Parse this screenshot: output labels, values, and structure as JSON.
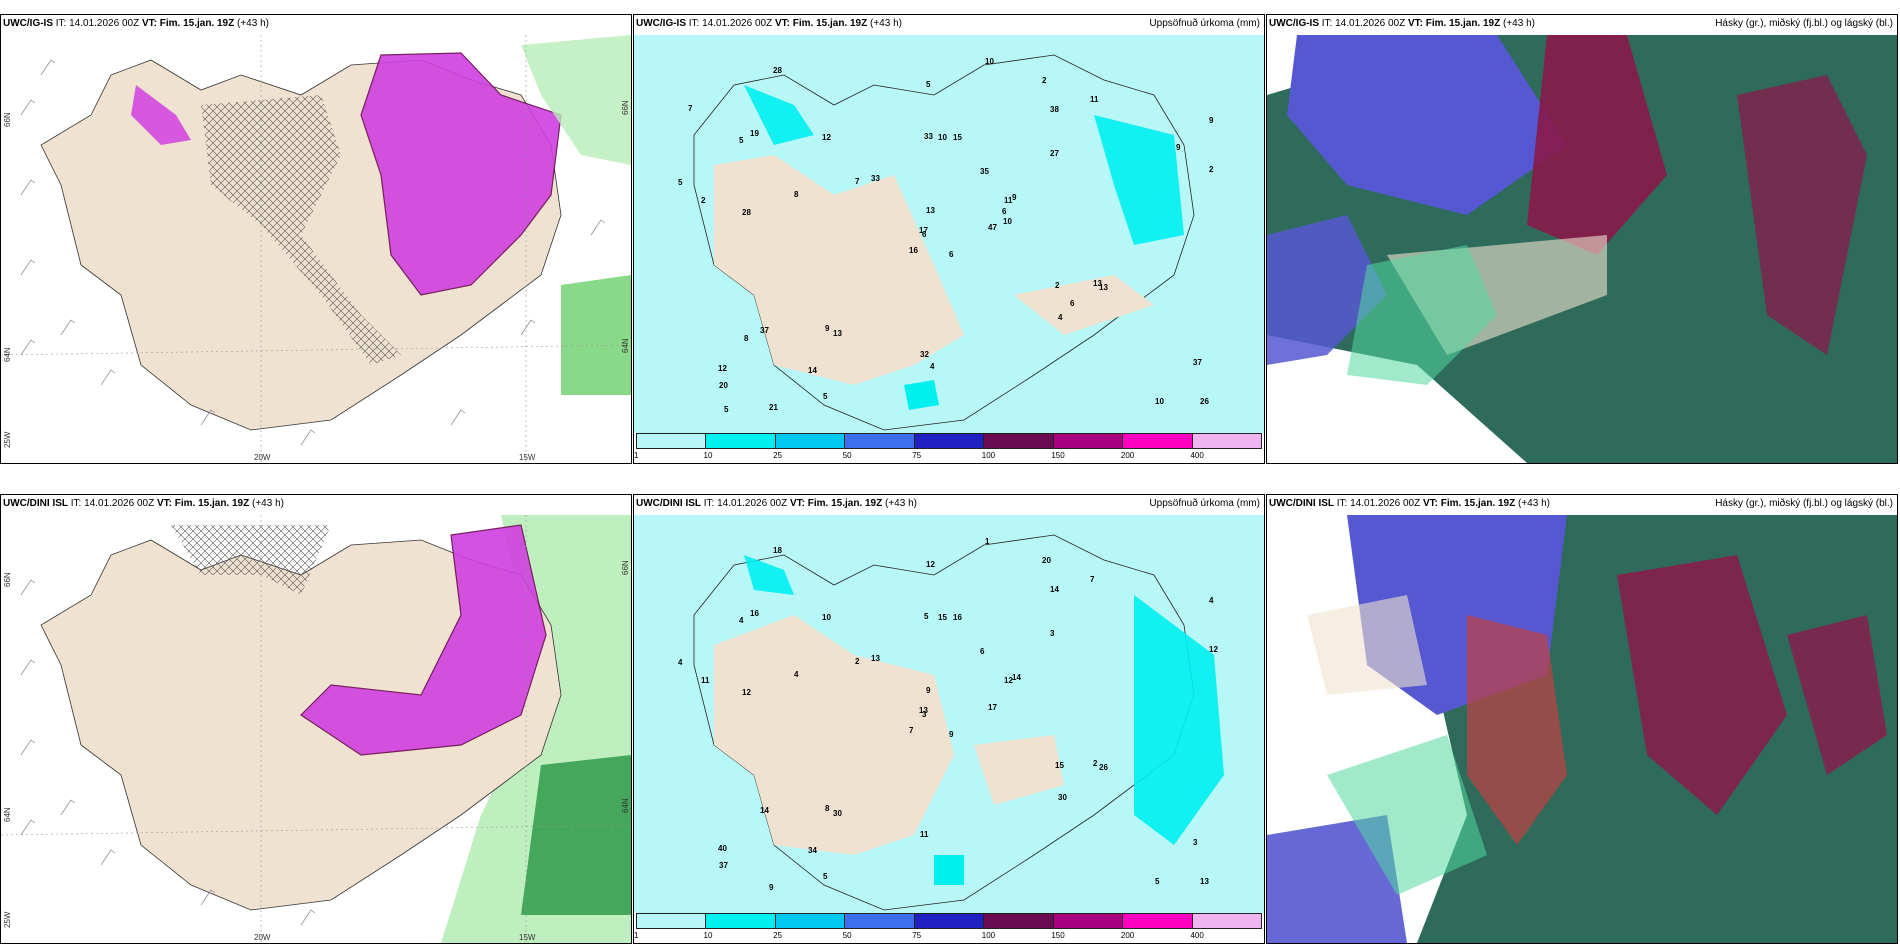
{
  "panels": [
    {
      "id": "p1",
      "source": "UWC/IG-IS",
      "it": "IT: 14.01.2026 00Z",
      "vt_label": "VT:",
      "vt": "Fim. 15.jan. 19Z",
      "lead": "(+43 h)",
      "desc": "",
      "type": "precip-wind",
      "axes": {
        "lat_top": "66N",
        "lat_bottom": "64N",
        "lon_left": "20W",
        "lon_right": "15W",
        "corner": "25W",
        "lat_top_r": "66N",
        "lat_bottom_r": "64N"
      }
    },
    {
      "id": "p2",
      "source": "UWC/IG-IS",
      "it": "IT: 14.01.2026 00Z",
      "vt_label": "VT:",
      "vt": "Fim. 15.jan. 19Z",
      "lead": "(+43 h)",
      "desc": "Uppsöfnuð úrkoma (mm)",
      "type": "accum",
      "values": [
        "6",
        "5",
        "6",
        "12",
        "11",
        "13",
        "2",
        "15",
        "38",
        "47",
        "28",
        "26",
        "28",
        "9",
        "16",
        "27",
        "21",
        "33",
        "35",
        "37",
        "33",
        "20",
        "14",
        "10",
        "9",
        "13",
        "19",
        "5",
        "2",
        "2",
        "2",
        "17",
        "32",
        "13",
        "12",
        "11",
        "9",
        "10",
        "37",
        "13",
        "10",
        "7",
        "8",
        "4",
        "5",
        "5",
        "6",
        "5",
        "4",
        "10",
        "8",
        "9",
        "7",
        "6"
      ]
    },
    {
      "id": "p3",
      "source": "UWC/IG-IS",
      "it": "IT: 14.01.2026 00Z",
      "vt_label": "VT:",
      "vt": "Fim. 15.jan. 19Z",
      "lead": "(+43 h)",
      "desc": "Hásky (gr.), miðský (fj.bl.) og lágský (bl.)",
      "type": "clouds"
    },
    {
      "id": "p4",
      "source": "UWC/DINI ISL",
      "it": "IT: 14.01.2026 00Z",
      "vt_label": "VT:",
      "vt": "Fim. 15.jan. 19Z",
      "lead": "(+43 h)",
      "desc": "",
      "type": "precip-wind",
      "axes": {
        "lat_top": "66N",
        "lat_bottom": "64N",
        "lon_left": "20W",
        "lon_right": "15W",
        "corner": "25W",
        "lat_top_r": "66N",
        "lat_bottom_r": "64N"
      }
    },
    {
      "id": "p5",
      "source": "UWC/DINI ISL",
      "it": "IT: 14.01.2026 00Z",
      "vt_label": "VT:",
      "vt": "Fim. 15.jan. 19Z",
      "lead": "(+43 h)",
      "desc": "Uppsöfnuð úrkoma (mm)",
      "type": "accum",
      "values": [
        "9",
        "4",
        "3",
        "40",
        "12",
        "30",
        "20",
        "16",
        "14",
        "17",
        "18",
        "13",
        "12",
        "4",
        "7",
        "3",
        "9",
        "5",
        "6",
        "14",
        "13",
        "37",
        "34",
        "15",
        "14",
        "26",
        "16",
        "12",
        "11",
        "15",
        "12",
        "13",
        "11",
        "9",
        "10",
        "7",
        "8",
        "5",
        "3",
        "2",
        "1",
        "2",
        "4",
        "30",
        "5",
        "4"
      ]
    },
    {
      "id": "p6",
      "source": "UWC/DINI ISL",
      "it": "IT: 14.01.2026 00Z",
      "vt_label": "VT:",
      "vt": "Fim. 15.jan. 19Z",
      "lead": "(+43 h)",
      "desc": "Hásky (gr.), miðský (fj.bl.) og lágský (bl.)",
      "type": "clouds"
    }
  ],
  "legend": {
    "colors": [
      "#b8f7f7",
      "#00f0f0",
      "#00c8f0",
      "#3c6ef0",
      "#1f22c0",
      "#6a0a50",
      "#a80080",
      "#ff00c0",
      "#f0b4f0"
    ],
    "ticks": [
      "1",
      "10",
      "25",
      "50",
      "75",
      "100",
      "150",
      "200",
      "400"
    ]
  },
  "colors": {
    "land": "#f0e2d0",
    "precip": "#d040e0",
    "sea_precip": "#b8f7f7"
  }
}
